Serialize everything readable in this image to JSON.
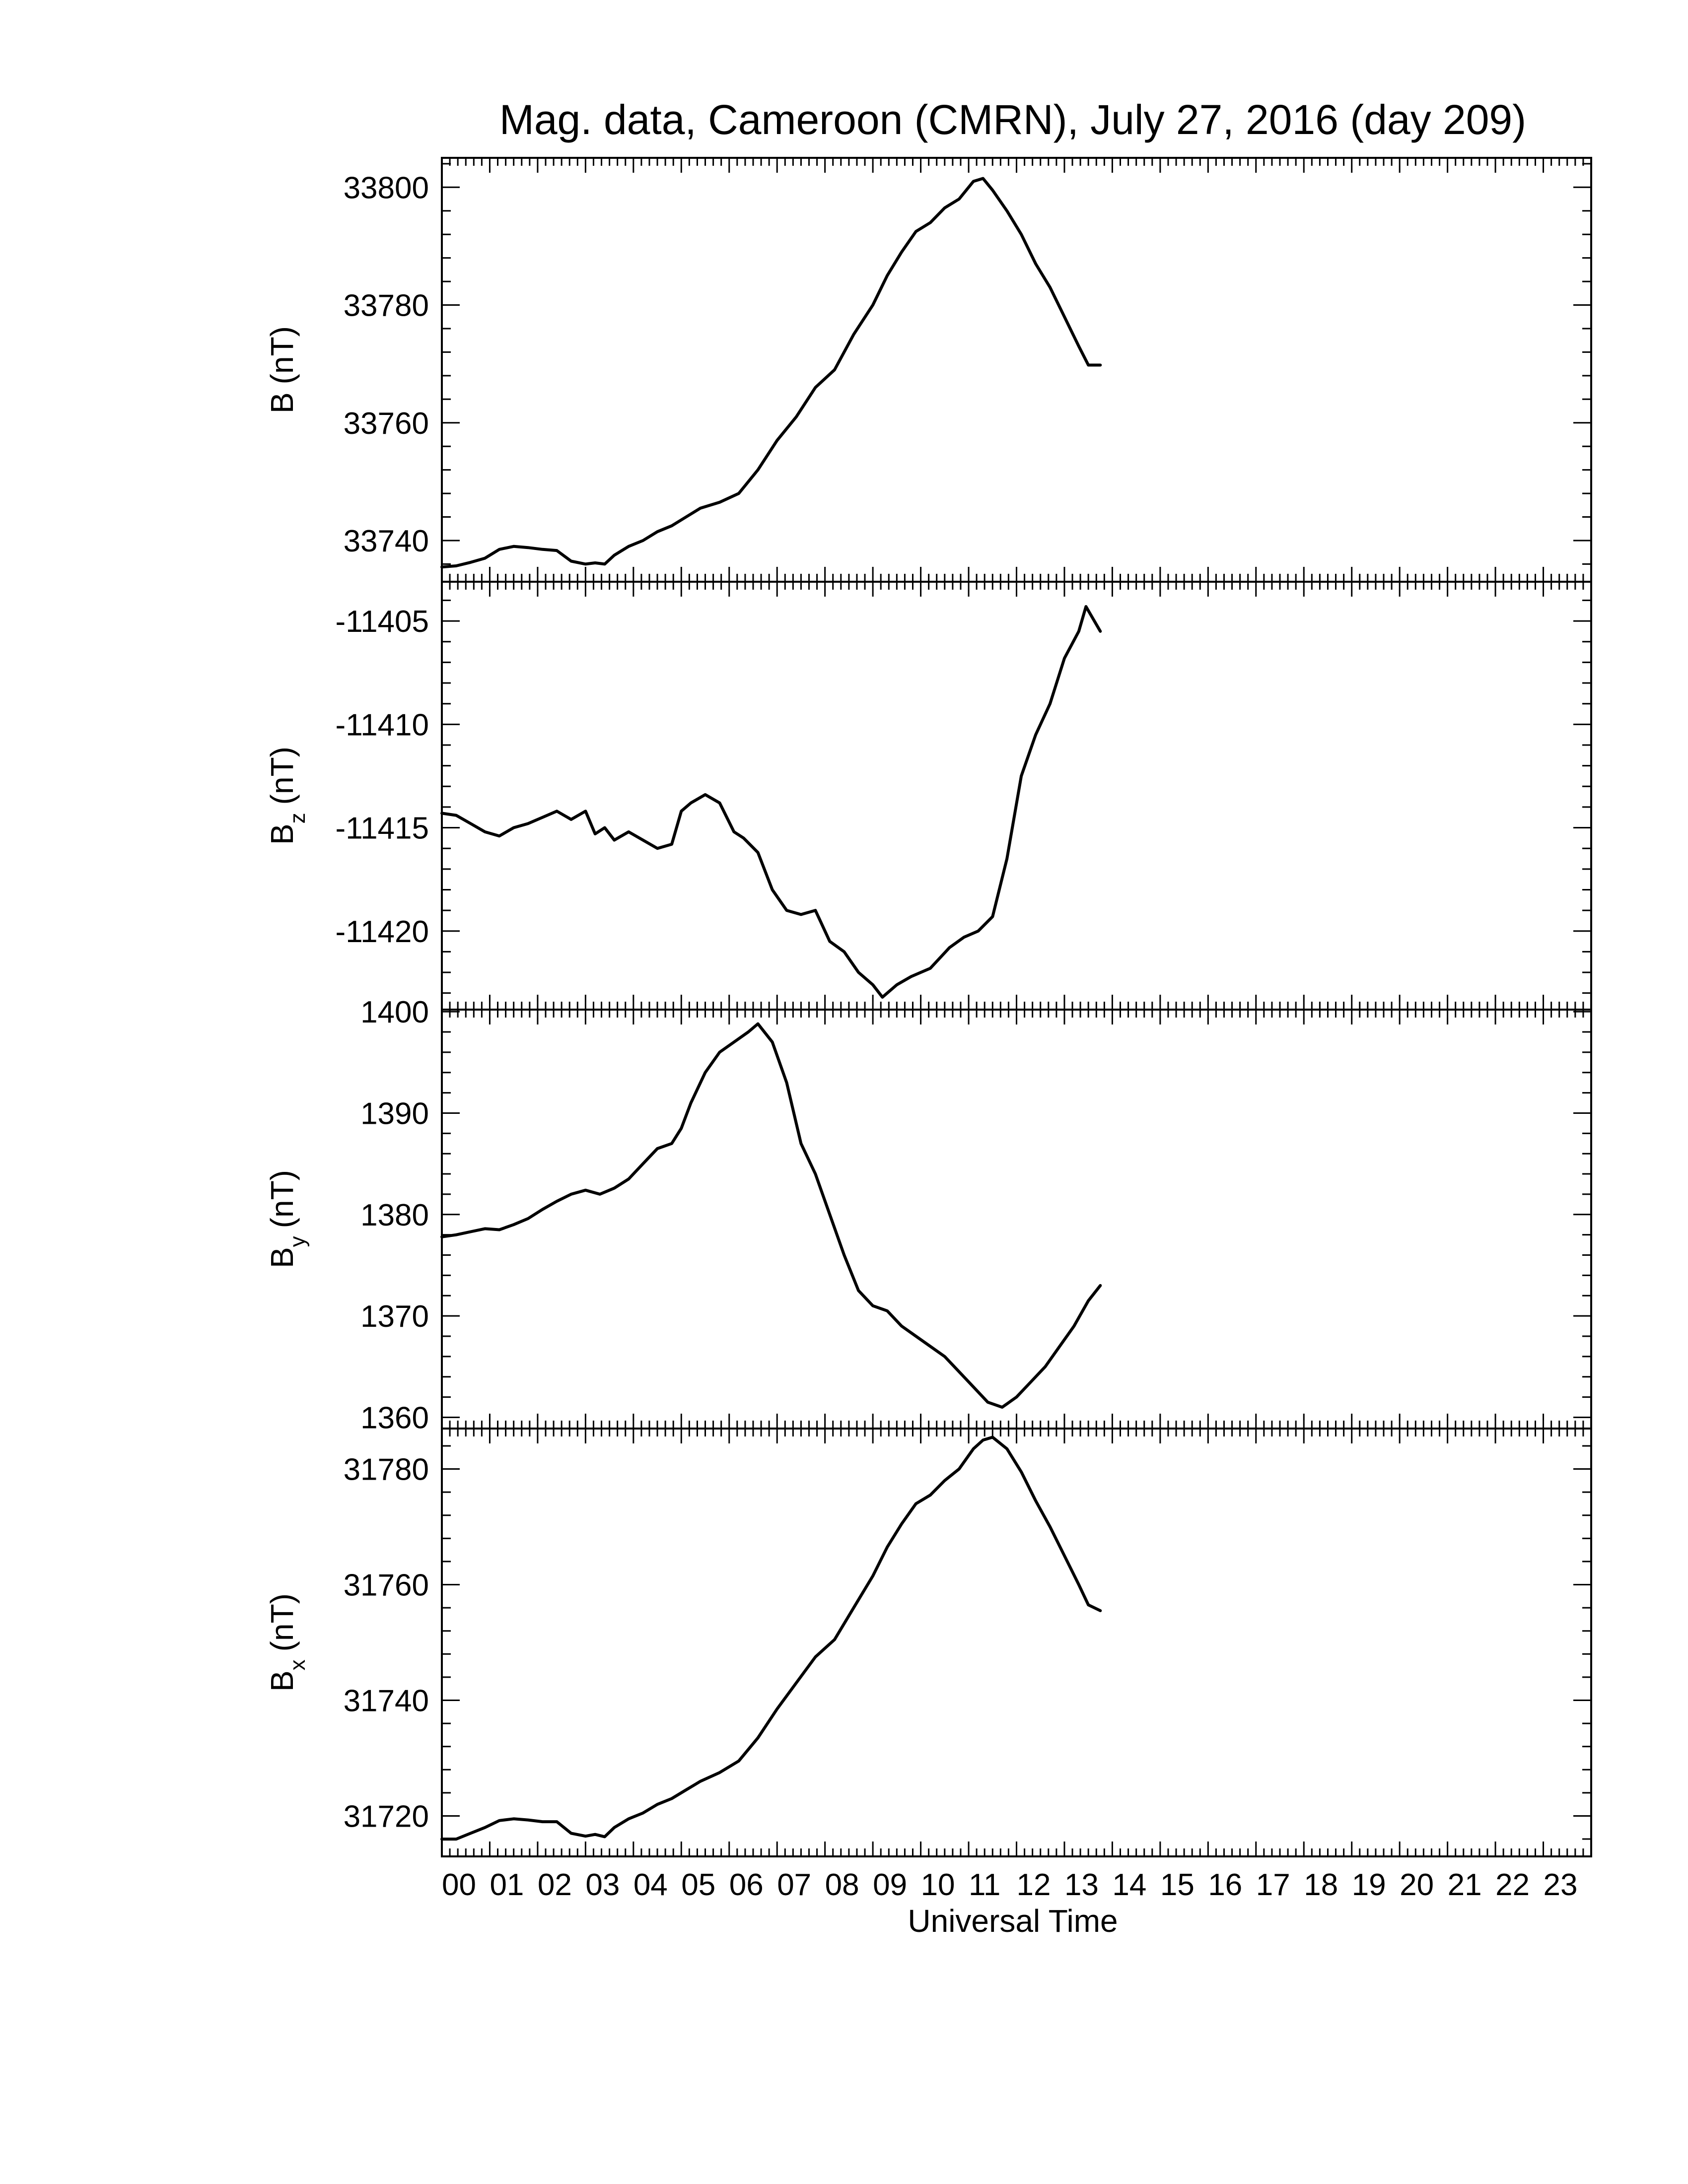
{
  "title": "Mag. data, Cameroon (CMRN), July 27, 2016 (day 209)",
  "xlabel": "Universal Time",
  "x_tick_labels": [
    "00",
    "01",
    "02",
    "03",
    "04",
    "05",
    "06",
    "07",
    "08",
    "09",
    "10",
    "11",
    "12",
    "13",
    "14",
    "15",
    "16",
    "17",
    "18",
    "19",
    "20",
    "21",
    "22",
    "23"
  ],
  "colors": {
    "line": "#000000",
    "background": "#ffffff",
    "frame": "#000000"
  },
  "chart_data": [
    {
      "type": "line",
      "ylabel": {
        "main": "B",
        "sub": "",
        "unit": "(nT)"
      },
      "xlim": [
        0,
        24
      ],
      "ylim": [
        33733,
        33805
      ],
      "yticks": [
        33740,
        33760,
        33780,
        33800
      ],
      "x": [
        0.0,
        0.3,
        0.6,
        0.9,
        1.2,
        1.5,
        1.8,
        2.1,
        2.4,
        2.7,
        3.0,
        3.2,
        3.4,
        3.6,
        3.9,
        4.2,
        4.5,
        4.8,
        5.1,
        5.4,
        5.8,
        6.2,
        6.6,
        7.0,
        7.4,
        7.8,
        8.2,
        8.6,
        9.0,
        9.3,
        9.6,
        9.9,
        10.2,
        10.5,
        10.8,
        11.1,
        11.3,
        11.5,
        11.8,
        12.1,
        12.4,
        12.7,
        13.0,
        13.3,
        13.5,
        13.75
      ],
      "y": [
        33735.5,
        33735.7,
        33736.3,
        33737.0,
        33738.5,
        33739.0,
        33738.8,
        33738.5,
        33738.3,
        33736.5,
        33736.0,
        33736.2,
        33736.0,
        33737.5,
        33739.0,
        33740.0,
        33741.5,
        33742.5,
        33744.0,
        33745.5,
        33746.5,
        33748.0,
        33752.0,
        33757.0,
        33761.0,
        33766.0,
        33769.0,
        33775.0,
        33780.0,
        33785.0,
        33789.0,
        33792.5,
        33794.0,
        33796.5,
        33798.0,
        33801.0,
        33801.5,
        33799.5,
        33796.0,
        33792.0,
        33787.0,
        33783.0,
        33778.0,
        33773.0,
        33769.8,
        33769.8
      ]
    },
    {
      "type": "line",
      "ylabel": {
        "main": "B",
        "sub": "z",
        "unit": "(nT)"
      },
      "xlim": [
        0,
        24
      ],
      "ylim": [
        -11423.8,
        -11403.1
      ],
      "yticks": [
        -11405,
        -11410,
        -11415,
        -11420
      ],
      "x": [
        0.0,
        0.3,
        0.6,
        0.9,
        1.2,
        1.5,
        1.8,
        2.1,
        2.4,
        2.7,
        3.0,
        3.2,
        3.4,
        3.6,
        3.9,
        4.2,
        4.5,
        4.8,
        5.0,
        5.2,
        5.5,
        5.8,
        6.1,
        6.3,
        6.6,
        6.9,
        7.2,
        7.5,
        7.8,
        8.1,
        8.4,
        8.7,
        9.0,
        9.2,
        9.5,
        9.8,
        10.2,
        10.6,
        10.9,
        11.2,
        11.5,
        11.8,
        12.1,
        12.4,
        12.7,
        13.0,
        13.3,
        13.45,
        13.75
      ],
      "y": [
        -11414.3,
        -11414.4,
        -11414.8,
        -11415.2,
        -11415.4,
        -11415.0,
        -11414.8,
        -11414.5,
        -11414.2,
        -11414.6,
        -11414.2,
        -11415.3,
        -11415.0,
        -11415.6,
        -11415.2,
        -11415.6,
        -11416.0,
        -11415.8,
        -11414.2,
        -11413.8,
        -11413.4,
        -11413.8,
        -11415.2,
        -11415.5,
        -11416.2,
        -11418.0,
        -11419.0,
        -11419.2,
        -11419.0,
        -11420.5,
        -11421.0,
        -11422.0,
        -11422.6,
        -11423.2,
        -11422.6,
        -11422.2,
        -11421.8,
        -11420.8,
        -11420.3,
        -11420.0,
        -11419.3,
        -11416.5,
        -11412.5,
        -11410.5,
        -11409.0,
        -11406.8,
        -11405.5,
        -11404.3,
        -11405.5
      ]
    },
    {
      "type": "line",
      "ylabel": {
        "main": "B",
        "sub": "y",
        "unit": "(nT)"
      },
      "xlim": [
        0,
        24
      ],
      "ylim": [
        1358.9,
        1400.2
      ],
      "yticks": [
        1360,
        1370,
        1380,
        1390,
        1400
      ],
      "x": [
        0.0,
        0.3,
        0.6,
        0.9,
        1.2,
        1.5,
        1.8,
        2.1,
        2.4,
        2.7,
        3.0,
        3.3,
        3.6,
        3.9,
        4.2,
        4.5,
        4.8,
        5.0,
        5.2,
        5.5,
        5.8,
        6.1,
        6.4,
        6.6,
        6.9,
        7.2,
        7.5,
        7.8,
        8.1,
        8.4,
        8.7,
        9.0,
        9.3,
        9.6,
        9.9,
        10.2,
        10.5,
        10.8,
        11.1,
        11.4,
        11.7,
        12.0,
        12.3,
        12.6,
        12.9,
        13.2,
        13.5,
        13.75
      ],
      "y": [
        1377.8,
        1378.0,
        1378.3,
        1378.6,
        1378.5,
        1379.0,
        1379.6,
        1380.5,
        1381.3,
        1382.0,
        1382.4,
        1382.0,
        1382.6,
        1383.5,
        1385.0,
        1386.5,
        1387.0,
        1388.5,
        1391.0,
        1394.0,
        1396.0,
        1397.0,
        1398.0,
        1398.8,
        1397.0,
        1393.0,
        1387.0,
        1384.0,
        1380.0,
        1376.0,
        1372.5,
        1371.0,
        1370.5,
        1369.0,
        1368.0,
        1367.0,
        1366.0,
        1364.5,
        1363.0,
        1361.5,
        1361.0,
        1362.0,
        1363.5,
        1365.0,
        1367.0,
        1369.0,
        1371.5,
        1373.0
      ]
    },
    {
      "type": "line",
      "ylabel": {
        "main": "B",
        "sub": "x",
        "unit": "(nT)"
      },
      "xlim": [
        0,
        24
      ],
      "ylim": [
        31713,
        31787
      ],
      "yticks": [
        31720,
        31740,
        31760,
        31780
      ],
      "x": [
        0.0,
        0.3,
        0.6,
        0.9,
        1.2,
        1.5,
        1.8,
        2.1,
        2.4,
        2.7,
        3.0,
        3.2,
        3.4,
        3.6,
        3.9,
        4.2,
        4.5,
        4.8,
        5.1,
        5.4,
        5.8,
        6.2,
        6.6,
        7.0,
        7.4,
        7.8,
        8.2,
        8.6,
        9.0,
        9.3,
        9.6,
        9.9,
        10.2,
        10.5,
        10.8,
        11.1,
        11.3,
        11.5,
        11.8,
        12.1,
        12.4,
        12.7,
        13.0,
        13.3,
        13.5,
        13.75
      ],
      "y": [
        31716.0,
        31716.0,
        31717.0,
        31718.0,
        31719.2,
        31719.5,
        31719.3,
        31719.0,
        31719.0,
        31717.0,
        31716.5,
        31716.8,
        31716.4,
        31718.0,
        31719.5,
        31720.5,
        31722.0,
        31723.0,
        31724.5,
        31726.0,
        31727.5,
        31729.5,
        31733.5,
        31738.5,
        31743.0,
        31747.5,
        31750.5,
        31756.0,
        31761.5,
        31766.5,
        31770.5,
        31774.0,
        31775.5,
        31778.0,
        31780.0,
        31783.5,
        31785.0,
        31785.5,
        31783.5,
        31779.5,
        31774.5,
        31770.0,
        31765.0,
        31760.0,
        31756.5,
        31755.5
      ]
    }
  ]
}
